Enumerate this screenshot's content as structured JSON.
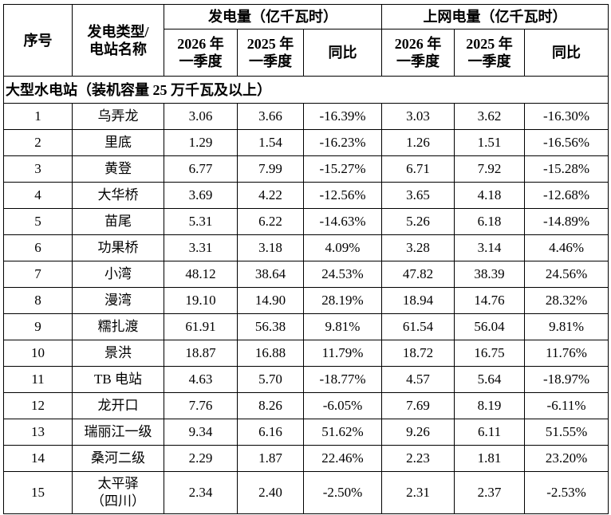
{
  "table": {
    "header_row1": [
      "序号",
      [
        "发电类型/",
        "电站名称"
      ],
      "发电量（亿千瓦时）",
      "上网电量（亿千瓦时）"
    ],
    "header_row2": [
      [
        "2026 年",
        "一季度"
      ],
      [
        "2025 年",
        "一季度"
      ],
      "同比",
      [
        "2026 年",
        "一季度"
      ],
      [
        "2025 年",
        "一季度"
      ],
      "同比"
    ],
    "section": "大型水电站（装机容量 25 万千瓦及以上）",
    "rows": [
      [
        "1",
        "乌弄龙",
        "3.06",
        "3.66",
        "-16.39%",
        "3.03",
        "3.62",
        "-16.30%"
      ],
      [
        "2",
        "里底",
        "1.29",
        "1.54",
        "-16.23%",
        "1.26",
        "1.51",
        "-16.56%"
      ],
      [
        "3",
        "黄登",
        "6.77",
        "7.99",
        "-15.27%",
        "6.71",
        "7.92",
        "-15.28%"
      ],
      [
        "4",
        "大华桥",
        "3.69",
        "4.22",
        "-12.56%",
        "3.65",
        "4.18",
        "-12.68%"
      ],
      [
        "5",
        "苗尾",
        "5.31",
        "6.22",
        "-14.63%",
        "5.26",
        "6.18",
        "-14.89%"
      ],
      [
        "6",
        "功果桥",
        "3.31",
        "3.18",
        "4.09%",
        "3.28",
        "3.14",
        "4.46%"
      ],
      [
        "7",
        "小湾",
        "48.12",
        "38.64",
        "24.53%",
        "47.82",
        "38.39",
        "24.56%"
      ],
      [
        "8",
        "漫湾",
        "19.10",
        "14.90",
        "28.19%",
        "18.94",
        "14.76",
        "28.32%"
      ],
      [
        "9",
        "糯扎渡",
        "61.91",
        "56.38",
        "9.81%",
        "61.54",
        "56.04",
        "9.81%"
      ],
      [
        "10",
        "景洪",
        "18.87",
        "16.88",
        "11.79%",
        "18.72",
        "16.75",
        "11.76%"
      ],
      [
        "11",
        "TB 电站",
        "4.63",
        "5.70",
        "-18.77%",
        "4.57",
        "5.64",
        "-18.97%"
      ],
      [
        "12",
        "龙开口",
        "7.76",
        "8.26",
        "-6.05%",
        "7.69",
        "8.19",
        "-6.11%"
      ],
      [
        "13",
        "瑞丽江一级",
        "9.34",
        "6.16",
        "51.62%",
        "9.26",
        "6.11",
        "51.55%"
      ],
      [
        "14",
        "桑河二级",
        "2.29",
        "1.87",
        "22.46%",
        "2.23",
        "1.81",
        "23.20%"
      ],
      [
        "15",
        [
          "太平驿",
          "（四川）"
        ],
        "2.34",
        "2.40",
        "-2.50%",
        "2.31",
        "2.37",
        "-2.53%"
      ]
    ]
  }
}
